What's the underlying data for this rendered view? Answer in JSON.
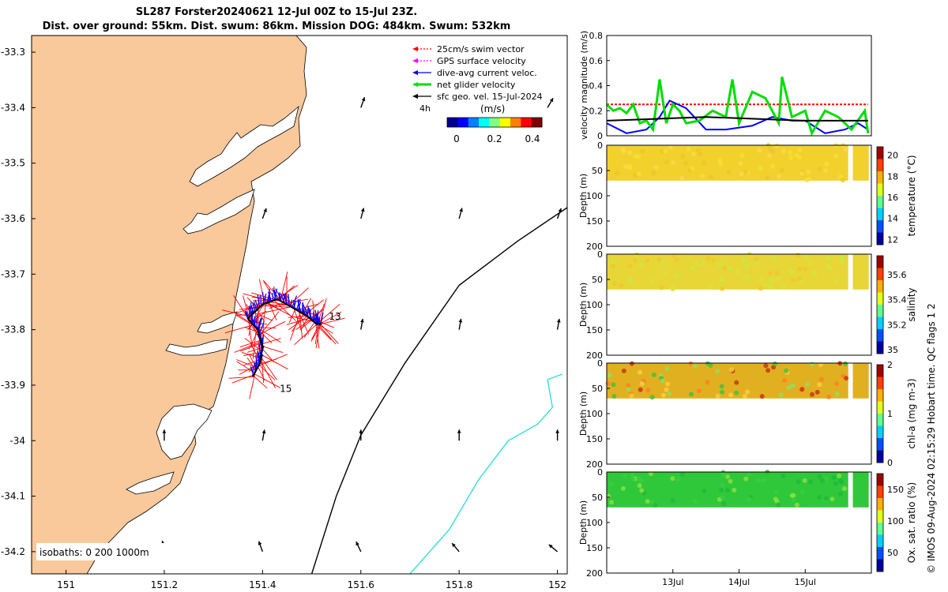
{
  "header": {
    "title_line1": "SL287 Forster20240621 12-Jul 00Z to 15-Jul 23Z.",
    "title_line2": "Dist. over ground: 55km. Dist. swum: 86km. Mission DOG: 484km. Swum: 532km"
  },
  "footer": {
    "copyright": "© IMOS 09-Aug-2024 02:15:29 Hobart time. QC flags 1  2"
  },
  "colors": {
    "land": "#f9c89b",
    "swim_vector": "#ff0000",
    "gps_velocity": "#ff00ff",
    "dive_current": "#0000ff",
    "net_velocity": "#00dd00",
    "sfc_geo": "#000000",
    "isobath_200": "#000000",
    "isobath_1000": "#33dddd"
  },
  "chart_data": [
    {
      "type": "map",
      "x_ticks": [
        "151",
        "151.2",
        "151.4",
        "151.6",
        "151.8",
        "152"
      ],
      "x_values": [
        151.0,
        151.2,
        151.4,
        151.6,
        151.8,
        152.0
      ],
      "y_ticks": [
        "-33.3",
        "-33.4",
        "-33.5",
        "-33.6",
        "-33.7",
        "-33.8",
        "-33.9",
        "-34",
        "-34.1",
        "-34.2"
      ],
      "y_values": [
        -33.3,
        -33.4,
        -33.5,
        -33.6,
        -33.7,
        -33.8,
        -33.9,
        -34.0,
        -34.1,
        -34.2
      ],
      "xlim": [
        150.93,
        152.02
      ],
      "ylim": [
        -34.24,
        -33.27
      ],
      "legend": [
        {
          "label": "25cm/s swim vector",
          "color": "#ff0000",
          "style": "dotted-arrow"
        },
        {
          "label": "GPS surface velocity",
          "color": "#ff00ff",
          "style": "dotted-arrow"
        },
        {
          "label": "dive-avg current veloc.",
          "color": "#0000ff",
          "style": "arrow"
        },
        {
          "label": "net glider velocity",
          "color": "#00dd00",
          "style": "thick-arrow"
        },
        {
          "label": "sfc geo. vel. 15-Jul-2024",
          "color": "#000000",
          "style": "arrow"
        }
      ],
      "legend_position": "top-right",
      "velocity_colorbar": {
        "label": "(m/s)",
        "ticks": [
          "0",
          "0.2",
          "0.4"
        ],
        "range": [
          0,
          0.5
        ],
        "note": "4h"
      },
      "day_labels": [
        {
          "text": "13",
          "lon": 151.535,
          "lat": -33.782
        },
        {
          "text": "15",
          "lon": 151.435,
          "lat": -33.912
        }
      ],
      "isobaths_label": "isobaths: 0    200   1000m",
      "glider_track": [
        [
          151.38,
          -33.885
        ],
        [
          151.395,
          -33.86
        ],
        [
          151.4,
          -33.83
        ],
        [
          151.39,
          -33.8
        ],
        [
          151.37,
          -33.78
        ],
        [
          151.4,
          -33.755
        ],
        [
          151.43,
          -33.745
        ],
        [
          151.46,
          -33.76
        ],
        [
          151.49,
          -33.775
        ],
        [
          151.51,
          -33.79
        ],
        [
          151.52,
          -33.79
        ]
      ],
      "isobath_200m": [
        [
          151.5,
          -34.24
        ],
        [
          151.55,
          -34.1
        ],
        [
          151.6,
          -33.99
        ],
        [
          151.69,
          -33.86
        ],
        [
          151.8,
          -33.72
        ],
        [
          151.92,
          -33.64
        ],
        [
          152.02,
          -33.58
        ]
      ],
      "isobath_1000m": [
        [
          151.7,
          -34.24
        ],
        [
          151.78,
          -34.16
        ],
        [
          151.84,
          -34.07
        ],
        [
          151.9,
          -34.0
        ],
        [
          151.96,
          -33.97
        ],
        [
          151.99,
          -33.94
        ],
        [
          151.98,
          -33.89
        ],
        [
          152.01,
          -33.88
        ]
      ],
      "geo_arrows": [
        {
          "lon": 151.6,
          "lat": -33.4,
          "dir": 20
        },
        {
          "lon": 151.98,
          "lat": -33.4,
          "dir": 30
        },
        {
          "lon": 151.4,
          "lat": -33.6,
          "dir": 20
        },
        {
          "lon": 151.6,
          "lat": -33.6,
          "dir": 15
        },
        {
          "lon": 151.8,
          "lat": -33.6,
          "dir": 15
        },
        {
          "lon": 152.0,
          "lat": -33.6,
          "dir": 20
        },
        {
          "lon": 151.6,
          "lat": -33.8,
          "dir": 10
        },
        {
          "lon": 151.8,
          "lat": -33.8,
          "dir": 10
        },
        {
          "lon": 152.0,
          "lat": -33.8,
          "dir": 10
        },
        {
          "lon": 151.2,
          "lat": -34.0,
          "dir": 0
        },
        {
          "lon": 151.4,
          "lat": -34.0,
          "dir": 10
        },
        {
          "lon": 151.6,
          "lat": -34.0,
          "dir": 0
        },
        {
          "lon": 151.8,
          "lat": -34.0,
          "dir": 0
        },
        {
          "lon": 152.0,
          "lat": -34.0,
          "dir": 0
        },
        {
          "lon": 151.2,
          "lat": -34.2,
          "dir": -10
        },
        {
          "lon": 151.4,
          "lat": -34.2,
          "dir": -20
        },
        {
          "lon": 151.6,
          "lat": -34.2,
          "dir": -25
        },
        {
          "lon": 151.8,
          "lat": -34.2,
          "dir": -40
        },
        {
          "lon": 152.0,
          "lat": -34.2,
          "dir": -50
        }
      ]
    },
    {
      "type": "line",
      "ylabel": "velocity magnitude (m/s)",
      "ylim": [
        0,
        0.8
      ],
      "y_ticks": [
        "0",
        "0.2",
        "0.4",
        "0.6",
        "0.8"
      ],
      "x_range_days": [
        12.0,
        16.0
      ],
      "series": [
        {
          "name": "25cm/s swim vector",
          "color": "#ff0000",
          "values": [
            [
              12.0,
              0.25
            ],
            [
              15.95,
              0.25
            ]
          ]
        },
        {
          "name": "dive-avg current veloc.",
          "color": "#0000ff",
          "values": [
            [
              12.0,
              0.1
            ],
            [
              12.3,
              0.02
            ],
            [
              12.6,
              0.05
            ],
            [
              12.8,
              0.15
            ],
            [
              12.95,
              0.28
            ],
            [
              13.2,
              0.22
            ],
            [
              13.5,
              0.05
            ],
            [
              13.8,
              0.05
            ],
            [
              14.2,
              0.08
            ],
            [
              14.5,
              0.15
            ],
            [
              14.8,
              0.12
            ],
            [
              15.0,
              0.12
            ],
            [
              15.3,
              0.02
            ],
            [
              15.6,
              0.05
            ],
            [
              15.8,
              0.1
            ],
            [
              15.95,
              0.05
            ]
          ]
        },
        {
          "name": "net glider velocity",
          "color": "#00dd00",
          "values": [
            [
              12.0,
              0.25
            ],
            [
              12.1,
              0.2
            ],
            [
              12.2,
              0.22
            ],
            [
              12.3,
              0.18
            ],
            [
              12.4,
              0.25
            ],
            [
              12.5,
              0.1
            ],
            [
              12.6,
              0.12
            ],
            [
              12.7,
              0.05
            ],
            [
              12.8,
              0.45
            ],
            [
              12.9,
              0.1
            ],
            [
              13.0,
              0.25
            ],
            [
              13.1,
              0.2
            ],
            [
              13.2,
              0.1
            ],
            [
              13.4,
              0.12
            ],
            [
              13.6,
              0.2
            ],
            [
              13.8,
              0.15
            ],
            [
              13.9,
              0.45
            ],
            [
              14.0,
              0.1
            ],
            [
              14.2,
              0.35
            ],
            [
              14.4,
              0.3
            ],
            [
              14.6,
              0.1
            ],
            [
              14.65,
              0.47
            ],
            [
              14.8,
              0.15
            ],
            [
              15.0,
              0.2
            ],
            [
              15.1,
              0.02
            ],
            [
              15.3,
              0.2
            ],
            [
              15.5,
              0.15
            ],
            [
              15.7,
              0.05
            ],
            [
              15.9,
              0.2
            ],
            [
              15.95,
              0.02
            ]
          ]
        },
        {
          "name": "sfc geo. vel.",
          "color": "#000000",
          "values": [
            [
              12.0,
              0.12
            ],
            [
              12.5,
              0.13
            ],
            [
              13.0,
              0.14
            ],
            [
              13.5,
              0.15
            ],
            [
              14.0,
              0.14
            ],
            [
              14.5,
              0.13
            ],
            [
              15.0,
              0.12
            ],
            [
              15.95,
              0.12
            ]
          ]
        }
      ]
    },
    {
      "type": "heatmap",
      "variable": "temperature (°C)",
      "ylabel": "Depth (m)",
      "ylim": [
        200,
        0
      ],
      "y_ticks": [
        "0",
        "50",
        "100",
        "150",
        "200"
      ],
      "colorbar_ticks": [
        "12",
        "14",
        "16",
        "18",
        "20"
      ],
      "clim": [
        11.5,
        20.8
      ],
      "sampled_depth_m": [
        0,
        70
      ],
      "typical_value": 18.5
    },
    {
      "type": "heatmap",
      "variable": "salinity",
      "ylabel": "Depth (m)",
      "ylim": [
        200,
        0
      ],
      "y_ticks": [
        "0",
        "50",
        "100",
        "150",
        "200"
      ],
      "colorbar_ticks": [
        "35",
        "35.2",
        "35.4",
        "35.6"
      ],
      "clim": [
        34.97,
        35.75
      ],
      "sampled_depth_m": [
        0,
        70
      ],
      "typical_value": 35.55
    },
    {
      "type": "heatmap",
      "variable": "chl-a (mg m-3)",
      "ylabel": "Depth (m)",
      "ylim": [
        200,
        0
      ],
      "y_ticks": [
        "0",
        "50",
        "100",
        "150",
        "200"
      ],
      "colorbar_ticks": [
        "0",
        "1",
        "2"
      ],
      "clim": [
        0,
        2
      ],
      "sampled_depth_m": [
        0,
        70
      ],
      "typical_value": 1.5
    },
    {
      "type": "heatmap",
      "variable": "Ox. sat. ratio (%)",
      "ylabel": "Depth (m)",
      "ylim": [
        200,
        0
      ],
      "y_ticks": [
        "0",
        "50",
        "100",
        "150",
        "200"
      ],
      "colorbar_ticks": [
        "50",
        "100",
        "150"
      ],
      "clim": [
        20,
        175
      ],
      "sampled_depth_m": [
        0,
        70
      ],
      "typical_value": 105
    },
    {
      "type": "axis",
      "x_ticks": [
        "13Jul",
        "14Jul",
        "15Jul"
      ],
      "x_values_days": [
        13,
        14,
        15
      ]
    }
  ]
}
